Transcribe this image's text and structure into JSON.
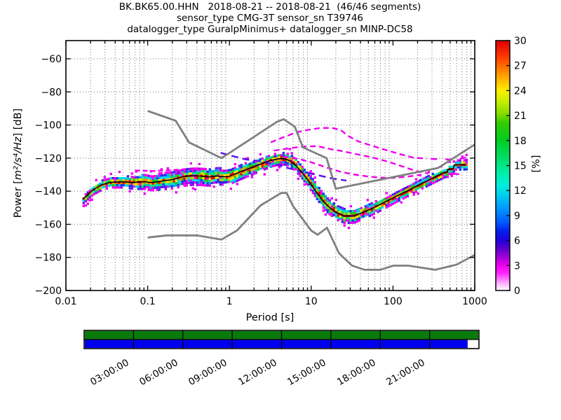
{
  "header": {
    "title": "BK.BK65.00.HHN   2018-08-21 -- 2018-08-21  (46/46 segments)",
    "subtitle_sensor": "sensor_type CMG-3T sensor_sn T39746",
    "subtitle_datalogger": "datalogger_type GuralpMinimus+ datalogger_sn MINP-DC58"
  },
  "chart_data": {
    "type": "line",
    "title": "BK.BK65.00.HHN   2018-08-21 -- 2018-08-21  (46/46 segments)",
    "xlabel": "Period [s]",
    "ylabel": {
      "prefix": "Power [",
      "math": "m²/s⁴/Hz",
      "suffix": "] [dB]"
    },
    "xscale": "log",
    "xlim": [
      0.01,
      1000
    ],
    "ylim": [
      -200,
      -49
    ],
    "grid": true,
    "xtick_values": [
      0.01,
      0.1,
      1,
      10,
      100,
      1000
    ],
    "xtick_labels": [
      "0.01",
      "0.1",
      "1",
      "10",
      "100",
      "1000"
    ],
    "ytick_values": [
      -60,
      -80,
      -100,
      -120,
      -140,
      -160,
      -180,
      -200
    ],
    "ytick_labels": [
      "−60",
      "−80",
      "−100",
      "−120",
      "−140",
      "−160",
      "−180",
      "−200"
    ],
    "colorbar": {
      "label": "[%]",
      "min": 0,
      "max": 30,
      "tick_values": [
        0,
        3,
        6,
        9,
        12,
        15,
        18,
        21,
        24,
        27,
        30
      ],
      "stops": [
        [
          0.0,
          "#FFFFFF"
        ],
        [
          0.03,
          "#FFAAFF"
        ],
        [
          0.07,
          "#FF22FF"
        ],
        [
          0.1,
          "#EE00EE"
        ],
        [
          0.13,
          "#AA00DD"
        ],
        [
          0.17,
          "#5500CC"
        ],
        [
          0.2,
          "#2200DD"
        ],
        [
          0.24,
          "#0022EE"
        ],
        [
          0.27,
          "#0055FF"
        ],
        [
          0.33,
          "#0099FF"
        ],
        [
          0.38,
          "#00CCEE"
        ],
        [
          0.42,
          "#00EEDD"
        ],
        [
          0.47,
          "#00EEAA"
        ],
        [
          0.53,
          "#00DD66"
        ],
        [
          0.6,
          "#00CC22"
        ],
        [
          0.67,
          "#33CC00"
        ],
        [
          0.71,
          "#88DD00"
        ],
        [
          0.76,
          "#CCEE00"
        ],
        [
          0.8,
          "#FFEE00"
        ],
        [
          0.84,
          "#FFBB00"
        ],
        [
          0.89,
          "#FF7700"
        ],
        [
          0.94,
          "#FF3300"
        ],
        [
          1.0,
          "#DD0000"
        ]
      ]
    },
    "band": {
      "x_range": [
        0.016,
        780
      ],
      "halfwidth_db": [
        [
          0.016,
          2.2
        ],
        [
          0.03,
          3.0
        ],
        [
          0.06,
          3.6
        ],
        [
          0.1,
          4.6
        ],
        [
          0.18,
          5.2
        ],
        [
          0.3,
          5.6
        ],
        [
          0.6,
          5.2
        ],
        [
          1.0,
          4.6
        ],
        [
          2.0,
          4.0
        ],
        [
          4.0,
          3.4
        ],
        [
          6.0,
          3.8
        ],
        [
          9.0,
          4.2
        ],
        [
          14.0,
          4.6
        ],
        [
          25.0,
          4.2
        ],
        [
          40.0,
          3.8
        ],
        [
          70.0,
          3.4
        ],
        [
          150.0,
          3.0
        ],
        [
          300.0,
          2.8
        ],
        [
          500.0,
          2.7
        ],
        [
          800.0,
          3.0
        ]
      ]
    },
    "series": [
      {
        "name": "low-percentage-trace-left",
        "color": "#EE00EE",
        "width": 2.4,
        "dash": "7 4",
        "points": [
          [
            0.07,
            -127.5
          ],
          [
            0.12,
            -127.8
          ],
          [
            0.2,
            -127.2
          ],
          [
            0.3,
            -126.6
          ],
          [
            0.45,
            -127.5
          ]
        ]
      },
      {
        "name": "low-percentage-trace-1",
        "color": "#EE00EE",
        "width": 2.4,
        "dash": "8 5",
        "points": [
          [
            3.2,
            -110.5
          ],
          [
            4.5,
            -107.5
          ],
          [
            6.5,
            -104.5
          ],
          [
            9,
            -103
          ],
          [
            13,
            -101.8
          ],
          [
            18,
            -101.8
          ],
          [
            23,
            -103
          ],
          [
            28,
            -106.5
          ],
          [
            38,
            -110
          ],
          [
            55,
            -112.5
          ],
          [
            80,
            -115
          ],
          [
            120,
            -117.5
          ],
          [
            180,
            -119.8
          ],
          [
            260,
            -120.3
          ]
        ]
      },
      {
        "name": "low-percentage-trace-2",
        "color": "#EE00EE",
        "width": 2.4,
        "dash": "8 5",
        "points": [
          [
            3.5,
            -115.5
          ],
          [
            5.5,
            -114
          ],
          [
            8,
            -113
          ],
          [
            12,
            -112.8
          ],
          [
            17,
            -114.5
          ],
          [
            24,
            -115.8
          ],
          [
            35,
            -117.5
          ],
          [
            55,
            -119.5
          ],
          [
            85,
            -122
          ],
          [
            130,
            -125
          ],
          [
            190,
            -127.8
          ],
          [
            270,
            -129.3
          ]
        ]
      },
      {
        "name": "low-percentage-trace-3",
        "color": "#EE00EE",
        "width": 2.4,
        "dash": "8 5",
        "points": [
          [
            4.5,
            -119
          ],
          [
            7,
            -120.5
          ],
          [
            10,
            -122.5
          ],
          [
            15,
            -125.5
          ],
          [
            22,
            -128
          ],
          [
            32,
            -129.8
          ],
          [
            48,
            -131
          ],
          [
            70,
            -131.8
          ],
          [
            100,
            -132
          ],
          [
            150,
            -131.2
          ],
          [
            210,
            -130.2
          ]
        ]
      },
      {
        "name": "low-percentage-trace-violet",
        "color": "#5511EE",
        "width": 2.4,
        "dash": "10 6",
        "points": [
          [
            0.78,
            -116.8
          ],
          [
            1.1,
            -118.8
          ],
          [
            1.6,
            -120.8
          ],
          [
            2.3,
            -121.8
          ],
          [
            3.3,
            -123.3
          ],
          [
            5,
            -125.8
          ],
          [
            8,
            -128.3
          ],
          [
            12,
            -130.3
          ],
          [
            18,
            -132.3
          ],
          [
            27,
            -133.6
          ]
        ]
      },
      {
        "name": "low-percentage-trace-right-upper",
        "color": "#EE00EE",
        "width": 2.4,
        "dash": "9 12",
        "points": [
          [
            290,
            -120.5
          ],
          [
            560,
            -121
          ],
          [
            780,
            -119.7
          ]
        ]
      },
      {
        "name": "low-percentage-trace-right-lower",
        "color": "#EE00EE",
        "width": 2.4,
        "dash": "9 9",
        "points": [
          [
            540,
            -129.5
          ],
          [
            700,
            -129.8
          ]
        ]
      },
      {
        "name": "mode",
        "color": "#000000",
        "width": 1.6,
        "dash": "",
        "points": [
          [
            0.016,
            -145
          ],
          [
            0.021,
            -139.5
          ],
          [
            0.027,
            -136.2
          ],
          [
            0.035,
            -134.6
          ],
          [
            0.05,
            -134.3
          ],
          [
            0.065,
            -134.8
          ],
          [
            0.09,
            -134.2
          ],
          [
            0.11,
            -134.8
          ],
          [
            0.15,
            -133.8
          ],
          [
            0.2,
            -133
          ],
          [
            0.28,
            -131
          ],
          [
            0.35,
            -130.6
          ],
          [
            0.45,
            -130.9
          ],
          [
            0.55,
            -131.4
          ],
          [
            0.7,
            -130.8
          ],
          [
            0.85,
            -131.3
          ],
          [
            1.0,
            -131
          ],
          [
            1.3,
            -128.6
          ],
          [
            1.8,
            -126
          ],
          [
            2.5,
            -123.3
          ],
          [
            3.2,
            -121.4
          ],
          [
            4.0,
            -120.4
          ],
          [
            4.8,
            -120.4
          ],
          [
            5.6,
            -121.8
          ],
          [
            6.5,
            -124.6
          ],
          [
            7.5,
            -128
          ],
          [
            9.0,
            -133
          ],
          [
            11.0,
            -139
          ],
          [
            13.5,
            -145
          ],
          [
            16.0,
            -149
          ],
          [
            20.0,
            -152.8
          ],
          [
            25.0,
            -155
          ],
          [
            33.0,
            -155
          ],
          [
            42.0,
            -153
          ],
          [
            58.0,
            -150
          ],
          [
            80.0,
            -146.6
          ],
          [
            110.0,
            -143
          ],
          [
            150.0,
            -139.8
          ],
          [
            210.0,
            -136
          ],
          [
            300.0,
            -132.3
          ],
          [
            420.0,
            -128.8
          ],
          [
            460.0,
            -128.6
          ],
          [
            468.0,
            -126.8
          ],
          [
            545.0,
            -126.6
          ],
          [
            558.0,
            -124.2
          ],
          [
            700.0,
            -124
          ],
          [
            780.0,
            -123.8
          ]
        ]
      },
      {
        "name": "noise-model-low-NLNM",
        "color": "#808080",
        "width": 2.8,
        "dash": "",
        "points": [
          [
            0.1,
            -168
          ],
          [
            0.17,
            -166.7
          ],
          [
            0.4,
            -166.7
          ],
          [
            0.8,
            -169.2
          ],
          [
            1.24,
            -163.7
          ],
          [
            2.4,
            -148.6
          ],
          [
            4.3,
            -141.1
          ],
          [
            5.0,
            -141.1
          ],
          [
            6.0,
            -149
          ],
          [
            10.0,
            -163.8
          ],
          [
            12.0,
            -166.3
          ],
          [
            15.6,
            -162.1
          ],
          [
            21.9,
            -177.5
          ],
          [
            31.6,
            -185
          ],
          [
            45.0,
            -187.5
          ],
          [
            70.0,
            -187.5
          ],
          [
            101.0,
            -185
          ],
          [
            154.0,
            -185
          ],
          [
            328.0,
            -187.5
          ],
          [
            600.0,
            -184.4
          ],
          [
            1000.0,
            -178.5
          ]
        ]
      },
      {
        "name": "noise-model-high-NHNM",
        "color": "#808080",
        "width": 2.8,
        "dash": "",
        "points": [
          [
            0.1,
            -91.5
          ],
          [
            0.22,
            -97.4
          ],
          [
            0.32,
            -110.5
          ],
          [
            0.8,
            -120
          ],
          [
            3.8,
            -98.1
          ],
          [
            4.6,
            -96.5
          ],
          [
            6.3,
            -101
          ],
          [
            7.9,
            -113.5
          ],
          [
            15.4,
            -120
          ],
          [
            20.0,
            -138.5
          ],
          [
            354.8,
            -126
          ],
          [
            1000.0,
            -111.8
          ]
        ]
      }
    ]
  },
  "timeline": {
    "hours_total": 24,
    "tick_hours": [
      3,
      6,
      9,
      12,
      15,
      18,
      21
    ],
    "tick_labels": [
      "03:00:00",
      "06:00:00",
      "09:00:00",
      "12:00:00",
      "15:00:00",
      "18:00:00",
      "21:00:00"
    ],
    "rows": [
      {
        "name": "segment-coverage",
        "color": "#0A7A0A",
        "frac": 1.0
      },
      {
        "name": "data-availability",
        "color": "#0000EE",
        "frac": 0.973
      }
    ]
  }
}
